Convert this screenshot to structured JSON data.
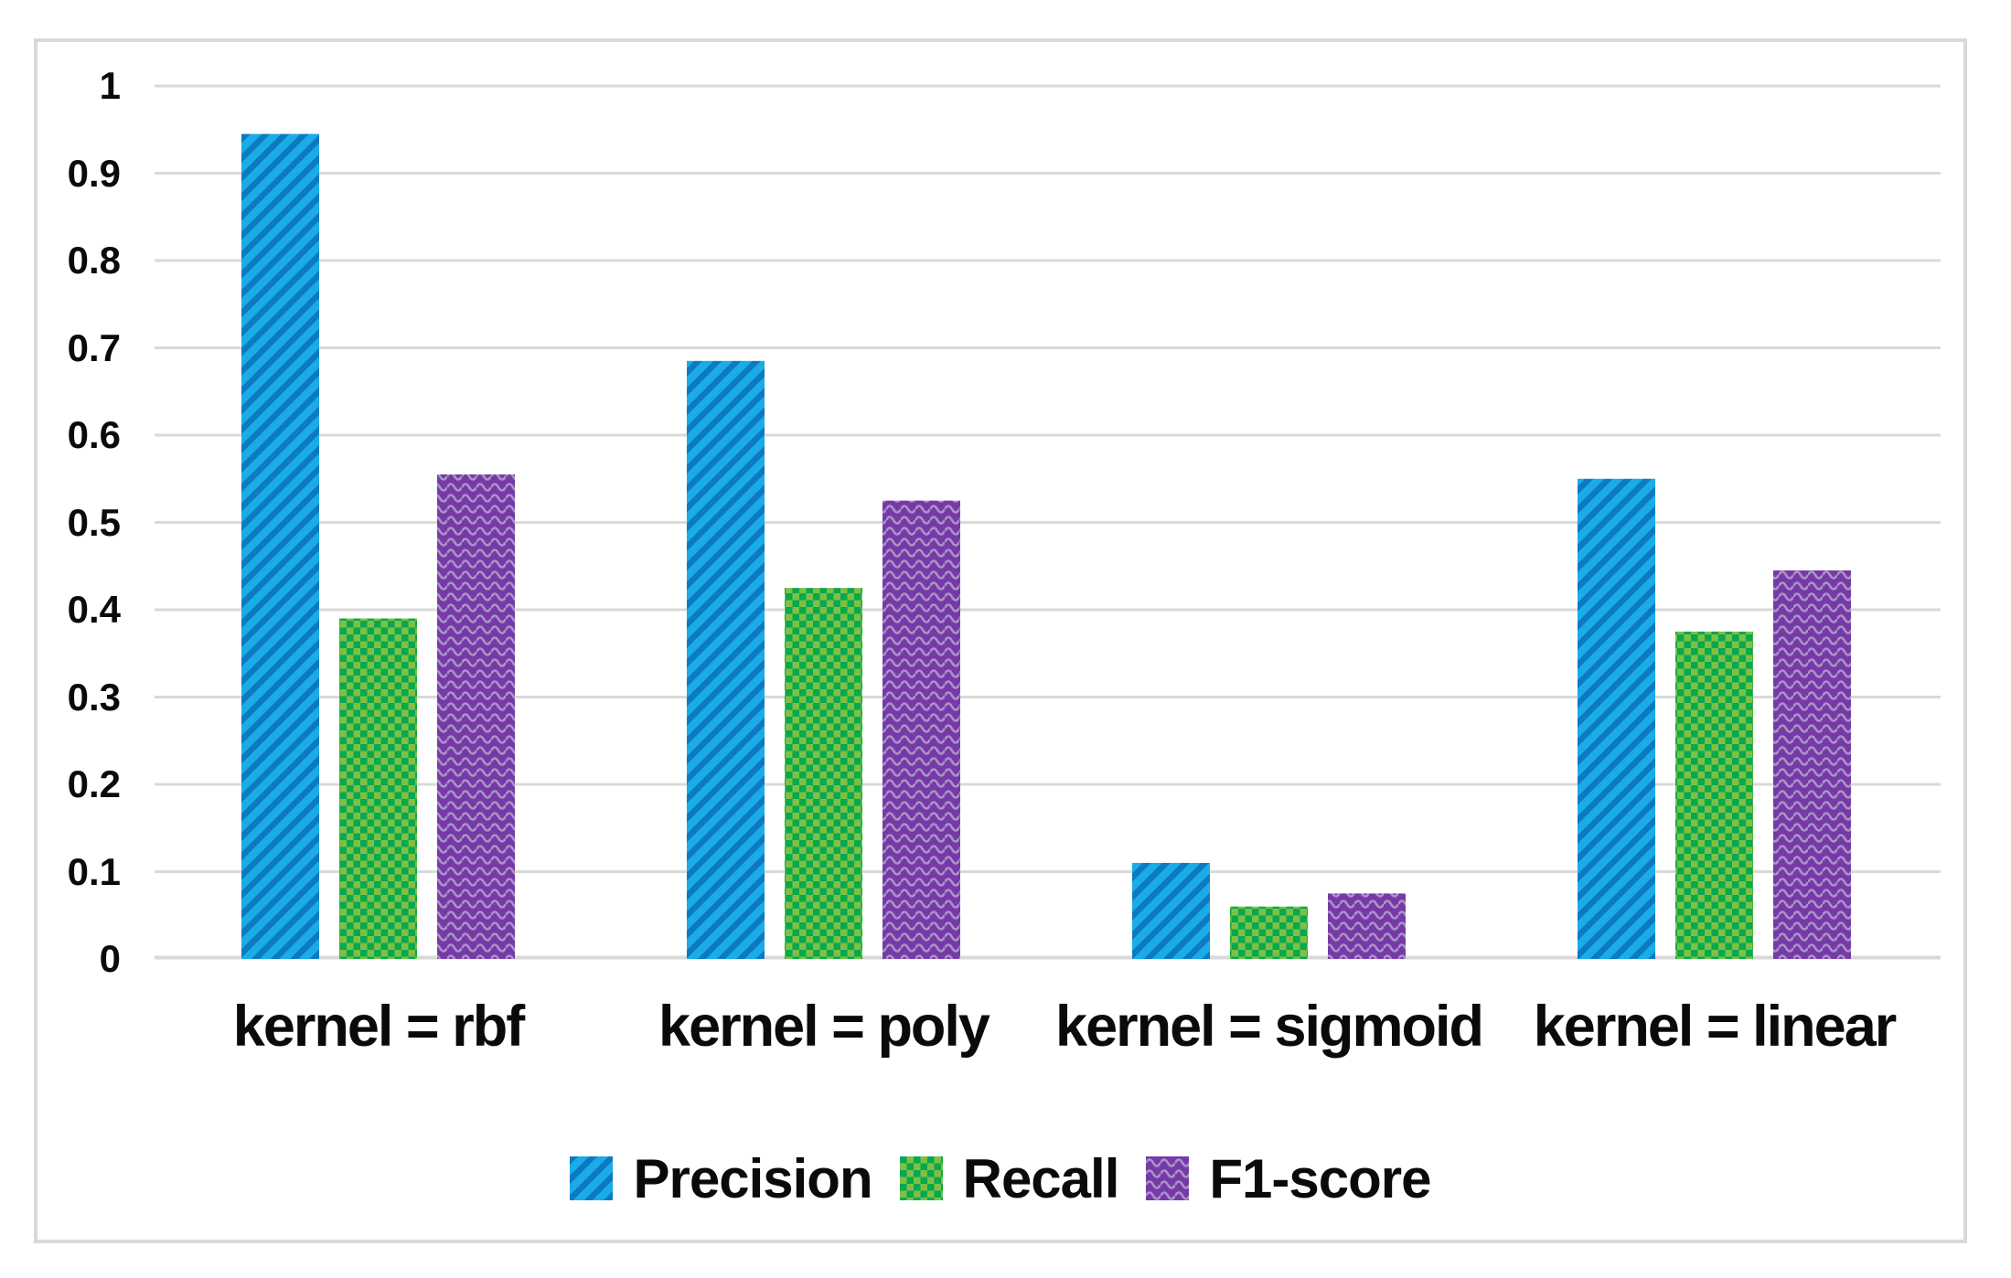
{
  "chart_data": {
    "type": "bar",
    "title": "",
    "xlabel": "",
    "ylabel": "",
    "categories": [
      "kernel = rbf",
      "kernel = poly",
      "kernel = sigmoid",
      "kernel = linear"
    ],
    "series": [
      {
        "name": "Precision",
        "pattern": "diagonal-stripes",
        "color_main": "#1aabe8",
        "color_accent": "#0d7ac0",
        "values": [
          0.945,
          0.685,
          0.11,
          0.55
        ]
      },
      {
        "name": "Recall",
        "pattern": "checkerboard",
        "color_main": "#7cc144",
        "color_accent": "#09a84e",
        "values": [
          0.39,
          0.425,
          0.06,
          0.375
        ]
      },
      {
        "name": "F1-score",
        "pattern": "horizontal-waves",
        "color_main": "#7839a8",
        "color_accent": "#a795c5",
        "values": [
          0.555,
          0.525,
          0.075,
          0.445
        ]
      }
    ],
    "ylim": [
      0,
      1
    ],
    "yticks": [
      0,
      0.1,
      0.2,
      0.3,
      0.4,
      0.5,
      0.6,
      0.7,
      0.8,
      0.9,
      1
    ],
    "ytick_labels": [
      "0",
      "0.1",
      "0.2",
      "0.3",
      "0.4",
      "0.5",
      "0.6",
      "0.7",
      "0.8",
      "0.9",
      "1"
    ],
    "grid": true,
    "gridline_color": "#d9d9d9",
    "legend_position": "bottom"
  },
  "legend": {
    "items": [
      "Precision",
      "Recall",
      "F1-score"
    ]
  },
  "colors": {
    "background": "#ffffff",
    "figure_border": "#d9d9d9",
    "text": "#0a0a0a"
  }
}
